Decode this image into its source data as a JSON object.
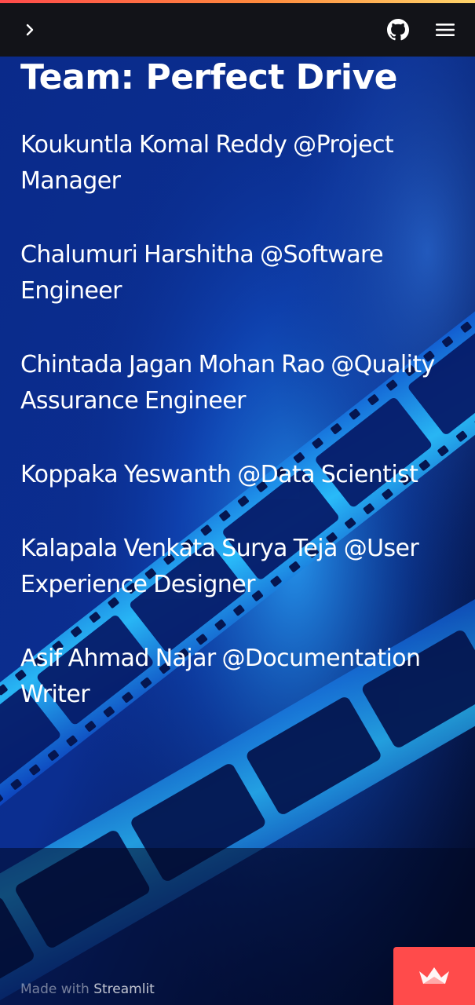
{
  "header": {
    "accent_colors": [
      "#ff4b4b",
      "#ffd56b"
    ],
    "background": "#121318",
    "icons": [
      "chevron-right-icon",
      "github-icon",
      "hamburger-menu-icon"
    ]
  },
  "main": {
    "title": "Team: Perfect Drive",
    "members": [
      "Koukuntla Komal Reddy @Project Manager",
      "Chalumuri Harshitha @Software Engineer",
      "Chintada Jagan Mohan Rao @Quality Assurance Engineer",
      "Koppaka Yeswanth @Data Scientist",
      "Kalapala Venkata Surya Teja @User Experience Designer",
      "Asif Ahmad Najar @Documentation Writer"
    ],
    "background_image": "blue film strip"
  },
  "footer": {
    "prefix": "Made with",
    "brand": "Streamlit"
  },
  "deploy_button": {
    "icon": "crown-icon",
    "color": "#ff4b4b"
  }
}
